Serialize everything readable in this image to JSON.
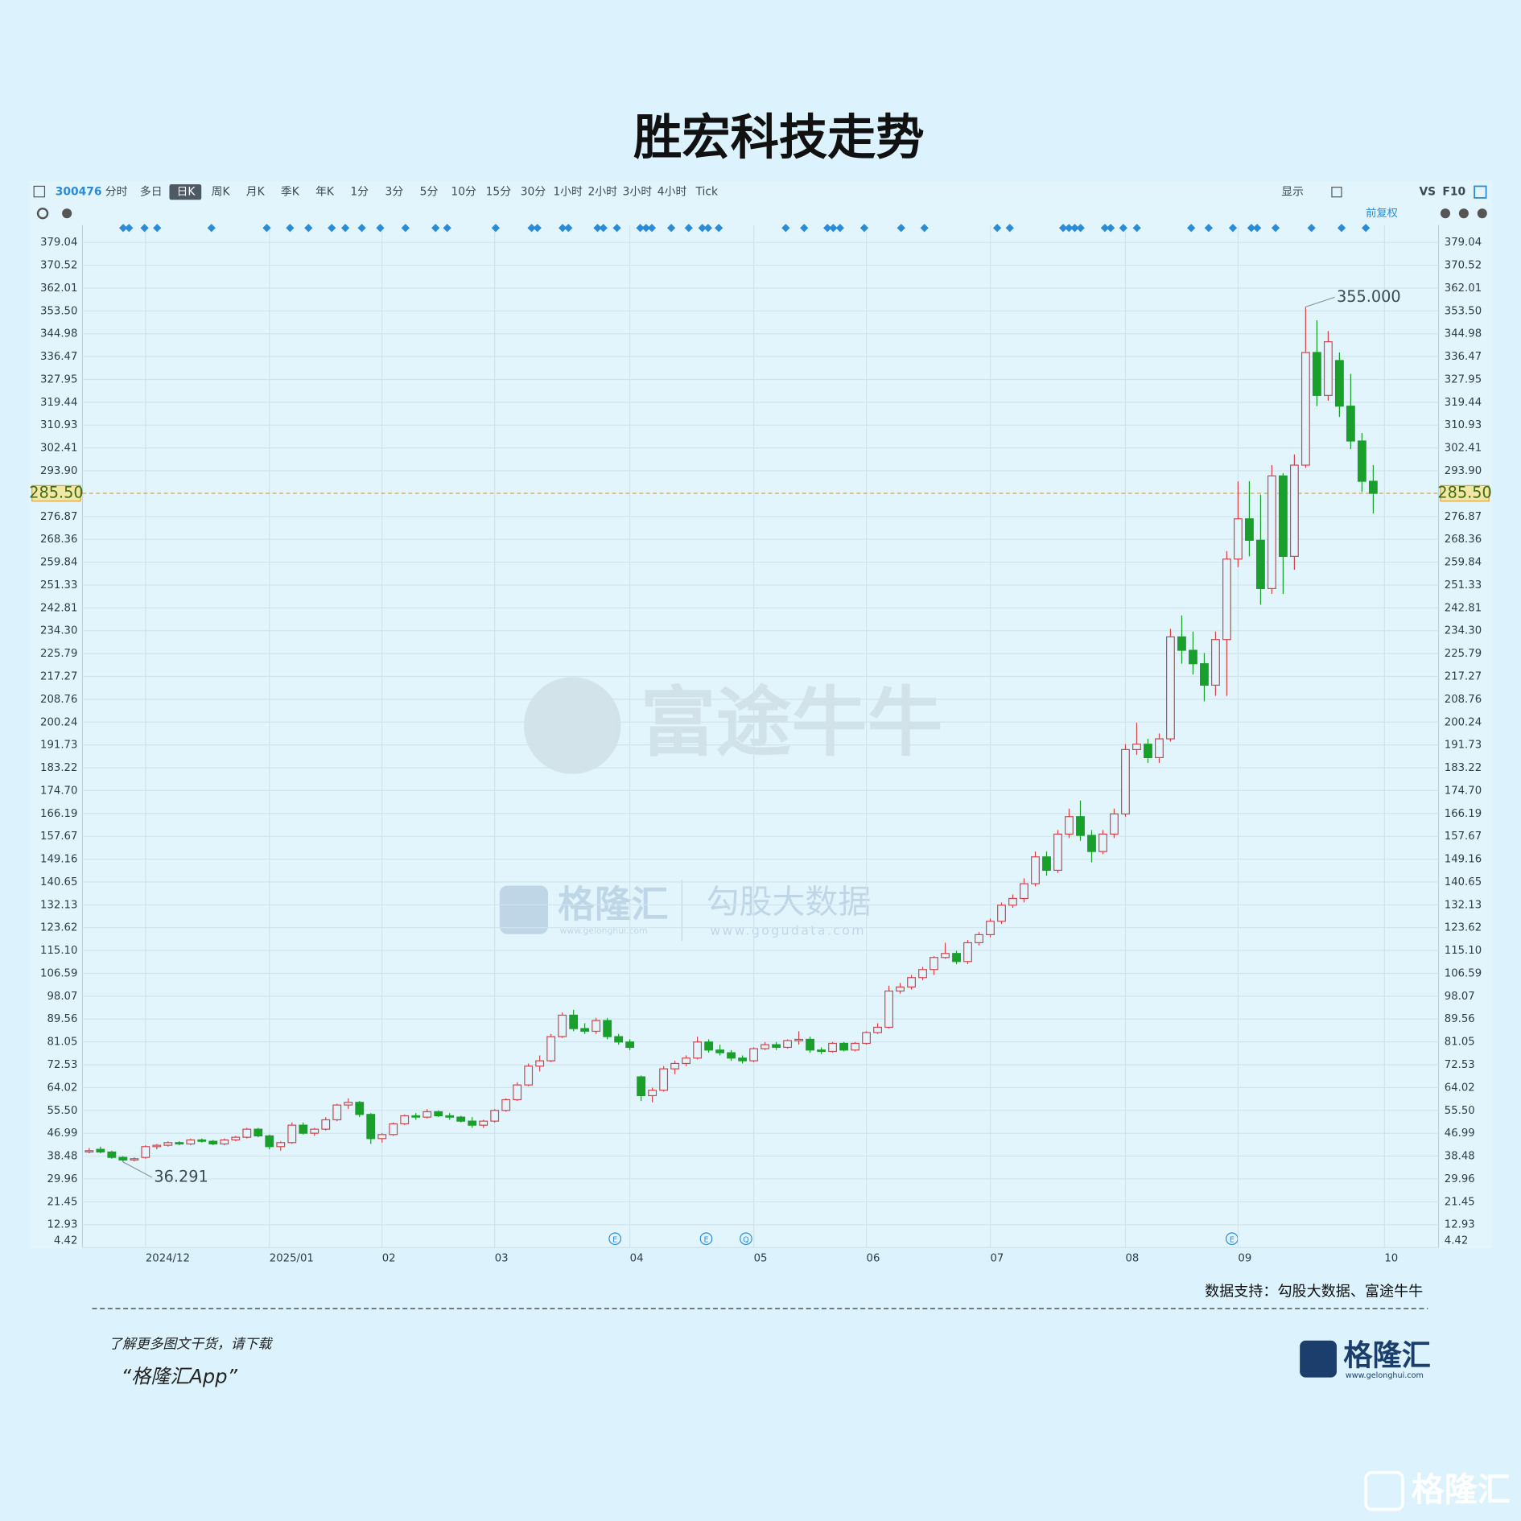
{
  "title": "胜宏科技走势",
  "toolbar": {
    "code": "300476",
    "periods": [
      "分时",
      "多日",
      "日K",
      "周K",
      "月K",
      "季K",
      "年K",
      "1分",
      "3分",
      "5分",
      "10分",
      "15分",
      "30分",
      "1小时",
      "2小时",
      "3小时",
      "4小时",
      "Tick"
    ],
    "active": 2,
    "display": "显示",
    "vs": "VS",
    "f10": "F10",
    "adjust": "前复权"
  },
  "chart_data": {
    "type": "candlestick",
    "xlim": [
      -0.6,
      119.8
    ],
    "xticks": [
      {
        "value": 5,
        "label": "2024/12"
      },
      {
        "value": 16,
        "label": "2025/01"
      },
      {
        "value": 26,
        "label": "02"
      },
      {
        "value": 36,
        "label": "03"
      },
      {
        "value": 48,
        "label": "04"
      },
      {
        "value": 59,
        "label": "05"
      },
      {
        "value": 69,
        "label": "06"
      },
      {
        "value": 80,
        "label": "07"
      },
      {
        "value": 92,
        "label": "08"
      },
      {
        "value": 102,
        "label": "09"
      },
      {
        "value": 115,
        "label": "10"
      }
    ],
    "ylim": [
      4.42,
      385.5
    ],
    "yticks": [
      4.42,
      12.93,
      21.45,
      29.96,
      38.48,
      46.99,
      {
        "value": 55.5,
        "label": "55.50"
      },
      64.02,
      72.53,
      81.05,
      89.56,
      98.07,
      106.59,
      {
        "value": 115.1,
        "label": "115.10"
      },
      123.62,
      132.13,
      140.65,
      149.16,
      157.67,
      166.19,
      {
        "value": 174.7,
        "label": "174.70"
      },
      183.22,
      191.73,
      200.24,
      208.76,
      217.27,
      225.79,
      {
        "value": 234.3,
        "label": "234.30"
      },
      242.81,
      251.33,
      259.84,
      268.36,
      276.87,
      {
        "value": 293.9,
        "label": "293.90"
      },
      302.41,
      310.93,
      319.44,
      327.95,
      336.47,
      344.98,
      {
        "value": 353.5,
        "label": "353.50"
      },
      362.01,
      370.52,
      379.04
    ],
    "grid": true,
    "up_color": "#d6434b",
    "down_color": "#18a02a",
    "current_price": {
      "value": 285.5,
      "label": "285.50"
    },
    "annotations": [
      {
        "value": 36.291,
        "label": "36.291"
      },
      {
        "value": 355,
        "label": "355.000"
      }
    ],
    "events": [
      "E",
      "E",
      "Q",
      "E"
    ],
    "candles": [
      [
        40,
        41.5,
        39.5,
        40.5
      ],
      [
        41,
        42,
        39.5,
        40
      ],
      [
        40,
        40.5,
        37.5,
        38
      ],
      [
        38,
        38.5,
        36.291,
        37
      ],
      [
        37,
        38,
        36.5,
        37.5
      ],
      [
        38,
        42.5,
        37.5,
        42
      ],
      [
        42,
        43,
        41,
        42.5
      ],
      [
        42.5,
        44,
        42,
        43.5
      ],
      [
        43.5,
        44,
        42.5,
        43
      ],
      [
        43,
        45,
        42.5,
        44.5
      ],
      [
        44.5,
        45,
        43.5,
        44
      ],
      [
        44,
        44.5,
        42.5,
        43
      ],
      [
        43,
        45,
        42.5,
        44.5
      ],
      [
        44.5,
        46,
        44,
        45.5
      ],
      [
        45.5,
        49,
        45,
        48.5
      ],
      [
        48.5,
        49,
        45.5,
        46
      ],
      [
        46,
        46.5,
        41,
        42
      ],
      [
        42,
        44,
        40.5,
        43.5
      ],
      [
        43.5,
        51,
        43,
        50
      ],
      [
        50,
        51,
        46.5,
        47
      ],
      [
        47,
        49,
        46,
        48.5
      ],
      [
        48.5,
        53,
        48,
        52
      ],
      [
        52,
        58,
        51.5,
        57.5
      ],
      [
        57.5,
        60,
        56,
        58.5
      ],
      [
        58.5,
        59,
        53,
        54
      ],
      [
        54,
        54.5,
        43,
        45
      ],
      [
        45,
        47,
        43.5,
        46.5
      ],
      [
        46.5,
        51,
        46,
        50.5
      ],
      [
        50.5,
        54,
        50,
        53.5
      ],
      [
        53.5,
        54.5,
        52,
        53
      ],
      [
        53,
        56,
        52.5,
        55
      ],
      [
        55,
        55.5,
        53,
        53.5
      ],
      [
        53.5,
        54.5,
        52,
        53
      ],
      [
        53,
        53.5,
        51,
        51.5
      ],
      [
        51.5,
        53,
        49,
        50
      ],
      [
        50,
        52,
        49,
        51.5
      ],
      [
        51.5,
        56,
        51,
        55.5
      ],
      [
        55.5,
        60,
        55,
        59.5
      ],
      [
        59.5,
        66,
        59,
        65
      ],
      [
        65,
        73,
        64.5,
        72
      ],
      [
        72,
        76,
        70,
        74
      ],
      [
        74,
        84,
        73.5,
        83
      ],
      [
        83,
        92,
        82.5,
        91
      ],
      [
        91,
        93,
        85,
        86
      ],
      [
        86,
        88,
        84,
        85
      ],
      [
        85,
        90,
        84,
        89
      ],
      [
        89,
        90,
        82,
        83
      ],
      [
        83,
        84,
        80,
        81
      ],
      [
        81,
        82,
        78,
        79
      ],
      [
        68,
        68.5,
        59,
        61
      ],
      [
        61,
        64,
        58.5,
        63
      ],
      [
        63,
        72,
        62.5,
        71
      ],
      [
        71,
        74,
        69,
        73
      ],
      [
        73,
        76,
        72,
        75
      ],
      [
        75,
        83,
        74.5,
        81
      ],
      [
        81,
        82,
        77,
        78
      ],
      [
        78,
        80,
        76,
        77
      ],
      [
        77,
        78,
        74,
        75
      ],
      [
        75,
        76,
        73,
        74
      ],
      [
        74,
        79,
        73.5,
        78.5
      ],
      [
        78.5,
        81,
        78,
        80
      ],
      [
        80,
        81,
        78,
        79
      ],
      [
        79,
        82,
        78.5,
        81.5
      ],
      [
        81.5,
        85,
        80,
        82
      ],
      [
        82,
        83,
        77,
        78
      ],
      [
        78,
        79,
        76.5,
        77.5
      ],
      [
        77.5,
        81,
        77,
        80.5
      ],
      [
        80.5,
        81,
        77.5,
        78
      ],
      [
        78,
        81,
        77.5,
        80.5
      ],
      [
        80.5,
        85,
        80,
        84.5
      ],
      [
        84.5,
        88,
        84,
        86.5
      ],
      [
        86.5,
        102,
        86,
        100
      ],
      [
        100,
        103,
        99,
        101.5
      ],
      [
        101.5,
        106,
        100.5,
        105
      ],
      [
        105,
        109,
        104,
        108
      ],
      [
        108,
        113,
        106,
        112.5
      ],
      [
        112.5,
        118,
        112,
        114
      ],
      [
        114,
        115,
        110,
        111
      ],
      [
        111,
        119,
        110,
        118
      ],
      [
        118,
        122,
        117,
        121
      ],
      [
        121,
        127,
        120,
        126
      ],
      [
        126,
        133,
        125,
        132
      ],
      [
        132,
        136,
        131,
        134.5
      ],
      [
        134.5,
        142,
        133,
        140
      ],
      [
        140,
        152,
        139,
        150
      ],
      [
        150,
        152,
        143,
        145
      ],
      [
        145,
        160,
        144,
        158.5
      ],
      [
        158.5,
        168,
        157,
        165
      ],
      [
        165,
        171,
        156,
        158
      ],
      [
        158,
        160,
        148,
        152
      ],
      [
        152,
        160,
        151,
        158.5
      ],
      [
        158.5,
        168,
        157,
        166
      ],
      [
        166,
        192,
        165,
        190
      ],
      [
        190,
        200,
        188,
        192
      ],
      [
        192,
        194,
        185,
        187
      ],
      [
        187,
        196,
        185,
        194
      ],
      [
        194,
        235,
        193,
        232
      ],
      [
        232,
        240,
        222,
        227
      ],
      [
        227,
        234,
        218,
        222
      ],
      [
        222,
        226,
        208,
        214
      ],
      [
        214,
        234,
        210,
        231
      ],
      [
        231,
        264,
        210,
        261
      ],
      [
        261,
        290,
        258,
        276
      ],
      [
        276,
        290,
        262,
        268
      ],
      [
        268,
        285,
        244,
        250
      ],
      [
        250,
        296,
        248,
        292
      ],
      [
        292,
        293,
        248,
        262
      ],
      [
        262,
        300,
        257,
        296
      ],
      [
        296,
        355,
        295,
        338
      ],
      [
        338,
        350,
        318,
        322
      ],
      [
        322,
        346,
        320,
        342
      ],
      [
        335,
        338,
        314,
        318
      ],
      [
        318,
        330,
        302,
        305
      ],
      [
        305,
        308,
        286,
        290
      ],
      [
        290,
        296,
        278,
        285.5
      ]
    ]
  },
  "watermarks": {
    "futu": "富途牛牛",
    "glh": "格隆汇",
    "glh_url": "www.gelonghui.com",
    "gogu": "勾股大数据",
    "gogu_url": "www.gogudata.com"
  },
  "source": "数据支持：勾股大数据、富途牛牛",
  "footer": {
    "line1": "了解更多图文干货，请下载",
    "line2": "“格隆汇App”",
    "logo": "格隆汇",
    "logo_url": "www.gelonghui.com",
    "corner": "格隆汇"
  }
}
